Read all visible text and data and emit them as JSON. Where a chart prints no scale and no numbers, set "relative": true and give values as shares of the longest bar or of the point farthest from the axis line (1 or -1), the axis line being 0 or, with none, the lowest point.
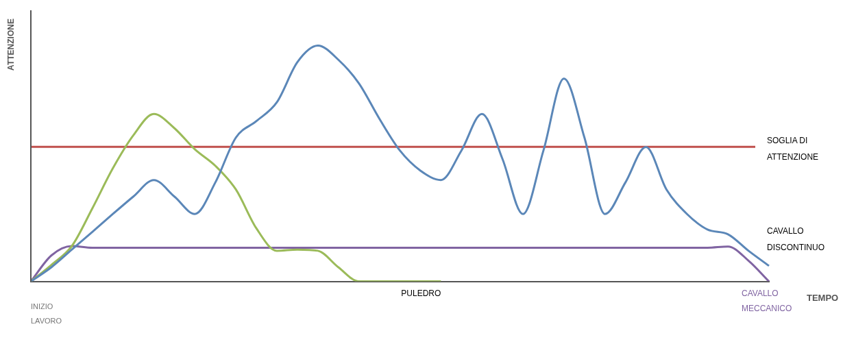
{
  "chart_data": {
    "type": "line",
    "relative": true,
    "xlabel": "TEMPO",
    "ylabel": "ATTENZIONE",
    "marker": "none",
    "line_style": "solid",
    "categories": [
      null,
      null,
      null,
      null,
      null,
      null,
      null,
      null,
      null,
      null,
      null,
      null,
      null,
      null,
      null,
      null,
      null,
      null,
      null,
      null,
      null,
      null,
      null,
      null,
      null,
      null,
      null,
      null,
      null,
      null,
      null,
      null,
      null,
      null,
      null,
      null,
      null
    ],
    "series": [
      {
        "name": "CAVALLO DISCONTINUO",
        "color": "#5b87b8",
        "values": [
          0,
          0.06,
          0.135,
          0.21,
          0.286,
          0.36,
          0.43,
          0.36,
          0.286,
          0.42,
          0.61,
          0.68,
          0.76,
          0.93,
          1,
          0.94,
          0.84,
          0.69,
          0.555,
          0.47,
          0.43,
          0.555,
          0.71,
          0.52,
          0.286,
          0.555,
          0.86,
          0.61,
          0.286,
          0.42,
          0.57,
          0.39,
          0.286,
          0.22,
          0.2,
          0.13,
          0.066
        ]
      },
      {
        "name": "PULEDRO",
        "color": "#9bbb59",
        "values": [
          0,
          0.07,
          0.15,
          0.31,
          0.48,
          0.62,
          0.71,
          0.65,
          0.56,
          0.49,
          0.39,
          0.225,
          0.13,
          0.135,
          0.13,
          0.06,
          0,
          0,
          0,
          0,
          0,
          null,
          null,
          null,
          null,
          null,
          null,
          null,
          null,
          null,
          null,
          null,
          null,
          null,
          null,
          null,
          null
        ]
      },
      {
        "name": "CAVALLO MECCANICO",
        "color": "#8064a2",
        "values": [
          0,
          0.11,
          0.15,
          0.143,
          0.143,
          0.143,
          0.143,
          0.143,
          0.143,
          0.143,
          0.143,
          0.143,
          0.143,
          0.143,
          0.143,
          0.143,
          0.143,
          0.143,
          0.143,
          0.143,
          0.143,
          0.143,
          0.143,
          0.143,
          0.143,
          0.143,
          0.143,
          0.143,
          0.143,
          0.143,
          0.143,
          0.143,
          0.143,
          0.143,
          0.148,
          0.088,
          0
        ]
      }
    ],
    "ref_lines": [
      {
        "axis": "y",
        "value": 0.571,
        "label": "SOGLIA DI ATTENZIONE",
        "color": "#c0504d"
      }
    ],
    "annotations": [
      "INIZIO LAVORO"
    ]
  }
}
